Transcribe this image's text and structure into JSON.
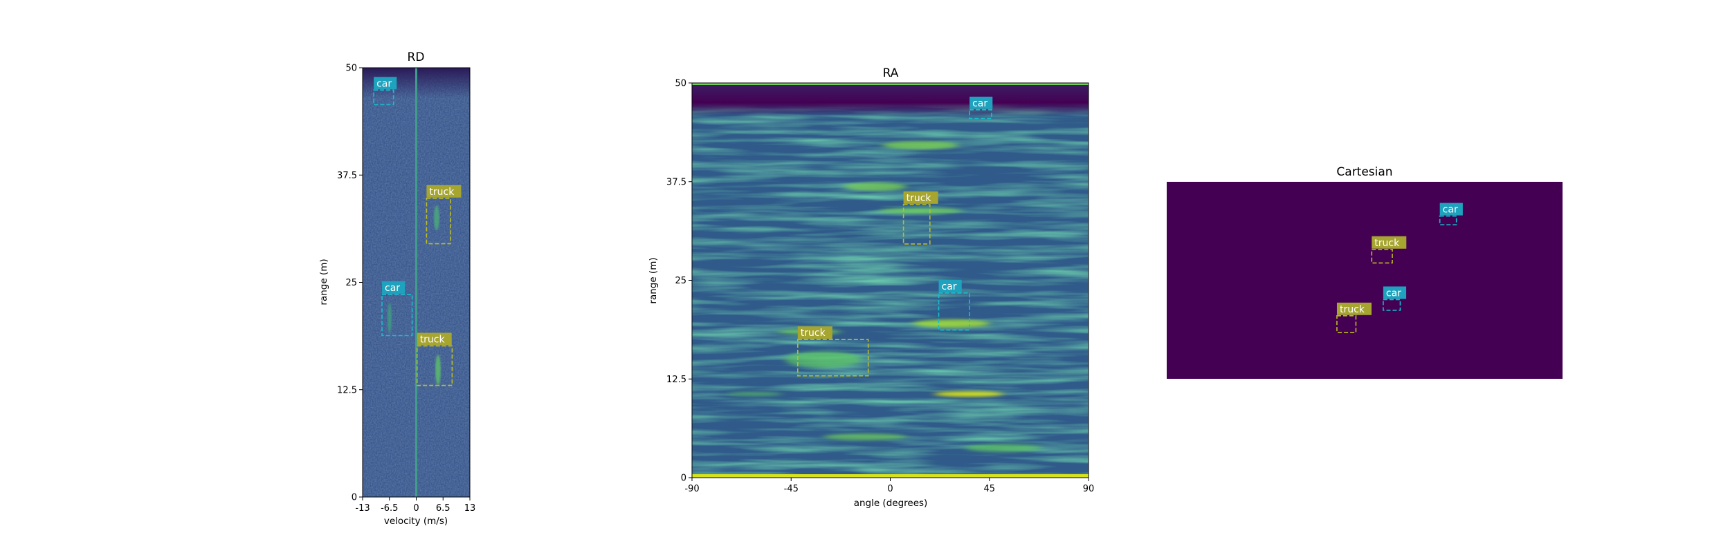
{
  "chart_data": [
    {
      "type": "heatmap",
      "title": "RD",
      "xlabel": "velocity (m/s)",
      "ylabel": "range (m)",
      "xlim": [
        -13,
        13
      ],
      "ylim": [
        0,
        50
      ],
      "xticks": [
        "-13",
        "-6.5",
        "0",
        "6.5",
        "13"
      ],
      "yticks": [
        "0",
        "12.5",
        "25",
        "37.5",
        "50"
      ],
      "grid": false,
      "boxes": [
        {
          "label": "car",
          "color": "#17becf",
          "x0": -10.3,
          "x1": -5.5,
          "y0": 45.7,
          "y1": 47.4
        },
        {
          "label": "truck",
          "color": "#bcbd22",
          "x0": 2.5,
          "x1": 8.3,
          "y0": 29.5,
          "y1": 34.8
        },
        {
          "label": "car",
          "color": "#17becf",
          "x0": -8.3,
          "x1": -1.0,
          "y0": 18.8,
          "y1": 23.6
        },
        {
          "label": "truck",
          "color": "#bcbd22",
          "x0": 0.2,
          "x1": 8.7,
          "y0": 13.0,
          "y1": 17.6
        }
      ]
    },
    {
      "type": "heatmap",
      "title": "RA",
      "xlabel": "angle (degrees)",
      "ylabel": "range (m)",
      "xlim": [
        -90,
        90
      ],
      "ylim": [
        0,
        50
      ],
      "xticks": [
        "-90",
        "-45",
        "0",
        "45",
        "90"
      ],
      "yticks": [
        "0",
        "12.5",
        "25",
        "37.5",
        "50"
      ],
      "grid": false,
      "boxes": [
        {
          "label": "car",
          "color": "#17becf",
          "x0": 36,
          "x1": 46,
          "y0": 45.5,
          "y1": 46.6
        },
        {
          "label": "truck",
          "color": "#bcbd22",
          "x0": 6,
          "x1": 18,
          "y0": 29.6,
          "y1": 34.6
        },
        {
          "label": "car",
          "color": "#17becf",
          "x0": 22,
          "x1": 36,
          "y0": 18.7,
          "y1": 23.4
        },
        {
          "label": "truck",
          "color": "#bcbd22",
          "x0": -42,
          "x1": -10,
          "y0": 12.9,
          "y1": 17.5
        }
      ]
    },
    {
      "type": "heatmap",
      "title": "Cartesian",
      "xlabel": "",
      "ylabel": "",
      "xlim": [
        0,
        1
      ],
      "ylim": [
        0,
        1
      ],
      "grid": false,
      "boxes": [
        {
          "label": "car",
          "color": "#17becf",
          "x0": 0.69,
          "x1": 0.732,
          "y0": 0.782,
          "y1": 0.826
        },
        {
          "label": "truck",
          "color": "#bcbd22",
          "x0": 0.518,
          "x1": 0.57,
          "y0": 0.588,
          "y1": 0.657
        },
        {
          "label": "car",
          "color": "#17becf",
          "x0": 0.547,
          "x1": 0.59,
          "y0": 0.348,
          "y1": 0.402
        },
        {
          "label": "truck",
          "color": "#bcbd22",
          "x0": 0.43,
          "x1": 0.478,
          "y0": 0.235,
          "y1": 0.32
        }
      ]
    }
  ]
}
